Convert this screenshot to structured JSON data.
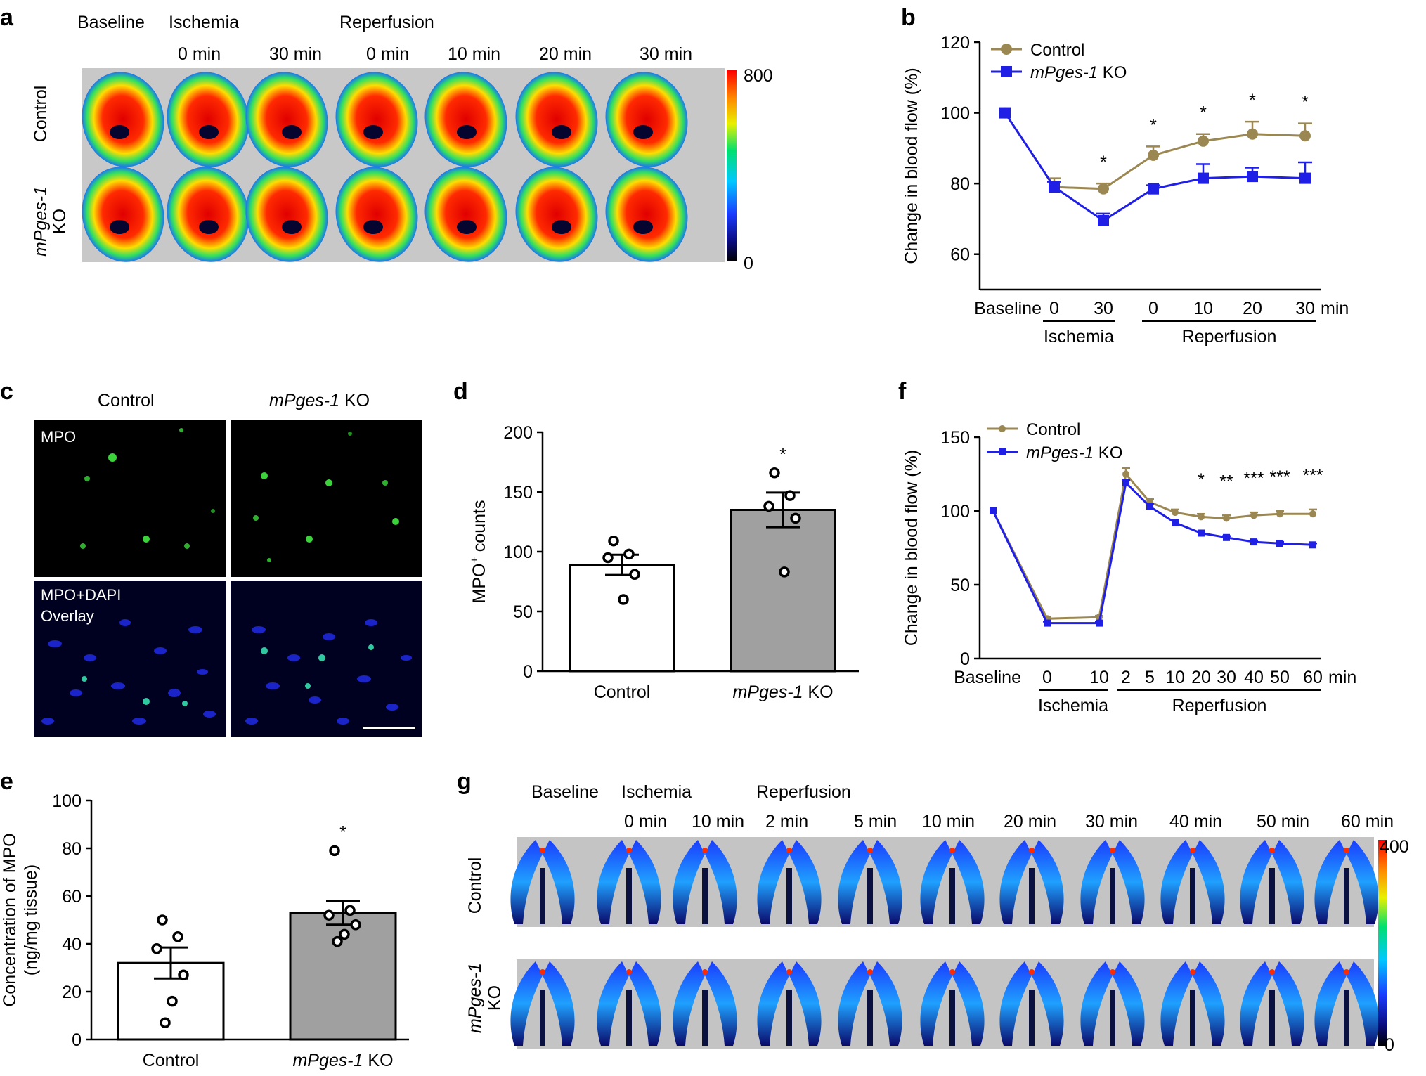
{
  "panels": {
    "a": {
      "label": "a",
      "header_baseline": "Baseline",
      "header_ischemia": "Ischemia",
      "header_reperfusion": "Reperfusion",
      "times": [
        "0 min",
        "30 min",
        "0 min",
        "10 min",
        "20 min",
        "30 min"
      ],
      "row_control": "Control",
      "row_ko_italic": "mPges-1",
      "row_ko_suffix": "KO",
      "colorbar_max": "800",
      "colorbar_min": "0"
    },
    "c": {
      "label": "c",
      "col_control": "Control",
      "col_ko_italic": "mPges-1",
      "col_ko_suffix": " KO",
      "row1_label": "MPO",
      "row2_label_line1": "MPO+DAPI",
      "row2_label_line2": "Overlay"
    },
    "g": {
      "label": "g",
      "header_baseline": "Baseline",
      "header_ischemia": "Ischemia",
      "header_reperfusion": "Reperfusion",
      "times": [
        "0 min",
        "10 min",
        "2 min",
        "5 min",
        "10 min",
        "20 min",
        "30 min",
        "40 min",
        "50 min",
        "60 min"
      ],
      "row_control": "Control",
      "row_ko_italic": "mPges-1",
      "row_ko_suffix": "KO",
      "colorbar_max": "400",
      "colorbar_min": "0"
    }
  },
  "chart_data": [
    {
      "panel": "b",
      "type": "line",
      "ylabel": "Change in blood flow (%)",
      "ylim": [
        50,
        120
      ],
      "yticks": [
        "60",
        "80",
        "100",
        "120"
      ],
      "x_tick_labels": [
        "Baseline",
        "0",
        "30",
        "0",
        "10",
        "20",
        "30"
      ],
      "x_unit": "min",
      "groups": [
        {
          "label": "Ischemia",
          "from": 1,
          "to": 2
        },
        {
          "label": "Reperfusion",
          "from": 3,
          "to": 6
        }
      ],
      "series": [
        {
          "name_italic": "",
          "name_suffix": "Control",
          "color": "#9b8751",
          "marker": "circle",
          "values": [
            100,
            79,
            78.5,
            88,
            92,
            94,
            93.5
          ],
          "errors": [
            0,
            2.5,
            1.5,
            2.5,
            2,
            3.5,
            3.5
          ]
        },
        {
          "name_italic": "mPges-1",
          "name_suffix": " KO",
          "color": "#1f1fe6",
          "marker": "square",
          "values": [
            100,
            79,
            69.5,
            78.5,
            81.5,
            82,
            81.5
          ],
          "errors": [
            0,
            1.5,
            2,
            1,
            4,
            2.5,
            4.5
          ]
        }
      ],
      "significance": [
        "",
        "",
        "*",
        "*",
        "*",
        "*",
        "*"
      ]
    },
    {
      "panel": "d",
      "type": "bar",
      "ylabel_main": "MPO",
      "ylabel_sup": "+",
      "ylabel_rest": " counts",
      "ylim": [
        0,
        200
      ],
      "yticks": [
        "0",
        "50",
        "100",
        "150",
        "200"
      ],
      "categories": [
        {
          "italic": "",
          "suffix": "Control"
        },
        {
          "italic": "mPges-1",
          "suffix": " KO"
        }
      ],
      "values": [
        89,
        135
      ],
      "errors": [
        8.5,
        14.5
      ],
      "points": [
        [
          109,
          98,
          95,
          81,
          60
        ],
        [
          166,
          147,
          138,
          128,
          83
        ]
      ],
      "fills": [
        "#ffffff",
        "#a0a0a0"
      ],
      "significance": [
        "",
        "*"
      ]
    },
    {
      "panel": "e",
      "type": "bar",
      "ylabel_line1": "Concentration of MPO",
      "ylabel_line2": "(ng/mg tissue)",
      "ylim": [
        0,
        100
      ],
      "yticks": [
        "0",
        "20",
        "40",
        "60",
        "80",
        "100"
      ],
      "categories": [
        {
          "italic": "",
          "suffix": "Control"
        },
        {
          "italic": "mPges-1",
          "suffix": " KO"
        }
      ],
      "values": [
        32,
        53
      ],
      "errors": [
        6.5,
        5
      ],
      "points": [
        [
          50,
          43,
          38,
          27,
          16,
          7
        ],
        [
          79,
          54,
          52,
          48,
          44,
          41
        ]
      ],
      "fills": [
        "#ffffff",
        "#a0a0a0"
      ],
      "significance": [
        "",
        "*"
      ]
    },
    {
      "panel": "f",
      "type": "line",
      "ylabel": "Change in blood flow (%)",
      "ylim": [
        0,
        150
      ],
      "yticks": [
        "0",
        "50",
        "100",
        "150"
      ],
      "x_tick_labels": [
        "Baseline",
        "0",
        "10",
        "2",
        "5",
        "10",
        "20",
        "30",
        "40",
        "50",
        "60"
      ],
      "x_unit": "min",
      "groups": [
        {
          "label": "Ischemia",
          "from": 1,
          "to": 2
        },
        {
          "label": "Reperfusion",
          "from": 3,
          "to": 10
        }
      ],
      "series": [
        {
          "name_italic": "",
          "name_suffix": "Control",
          "color": "#9b8751",
          "marker": "circle",
          "values": [
            100,
            27,
            28,
            125,
            106,
            99,
            96,
            95,
            97,
            98,
            98
          ],
          "errors": [
            0,
            1,
            1,
            4,
            2,
            2,
            2,
            2,
            2,
            2,
            3
          ]
        },
        {
          "name_italic": "mPges-1",
          "name_suffix": " KO",
          "color": "#1f1fe6",
          "marker": "square",
          "values": [
            100,
            24,
            24,
            119,
            103,
            92,
            85,
            82,
            79,
            78,
            77
          ],
          "errors": [
            0,
            1,
            1,
            2,
            2,
            2,
            1,
            1,
            1,
            1,
            1
          ]
        }
      ],
      "significance": [
        "",
        "",
        "",
        "",
        "",
        "",
        "*",
        "**",
        "***",
        "***",
        "***"
      ]
    }
  ],
  "panel_labels": {
    "b": "b",
    "d": "d",
    "e": "e",
    "f": "f"
  }
}
